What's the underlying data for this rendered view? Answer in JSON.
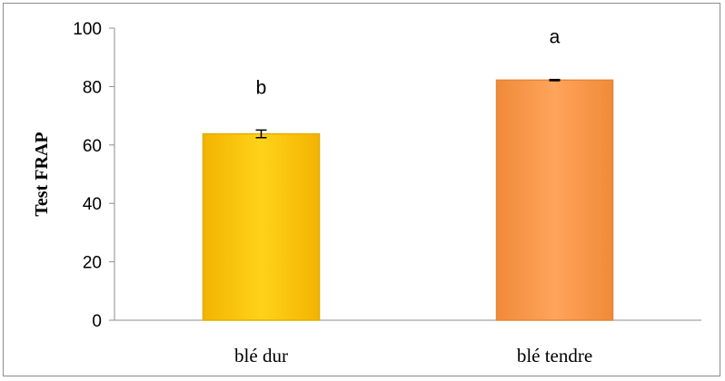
{
  "chart_data": {
    "type": "bar",
    "categories": [
      "blé dur",
      "blé tendre"
    ],
    "values": [
      63.8,
      82.2
    ],
    "errors": [
      1.3,
      0.2
    ],
    "significance_labels": [
      "b",
      "a"
    ],
    "ylabel": "Test FRAP",
    "ylim": [
      0,
      100
    ],
    "yticks": [
      "0",
      "20",
      "40",
      "60",
      "80",
      "100"
    ],
    "grid": false,
    "colors": [
      "#ffc000",
      "#f79646"
    ],
    "edge_colors": [
      "#e6ac00",
      "#e3853a"
    ]
  }
}
